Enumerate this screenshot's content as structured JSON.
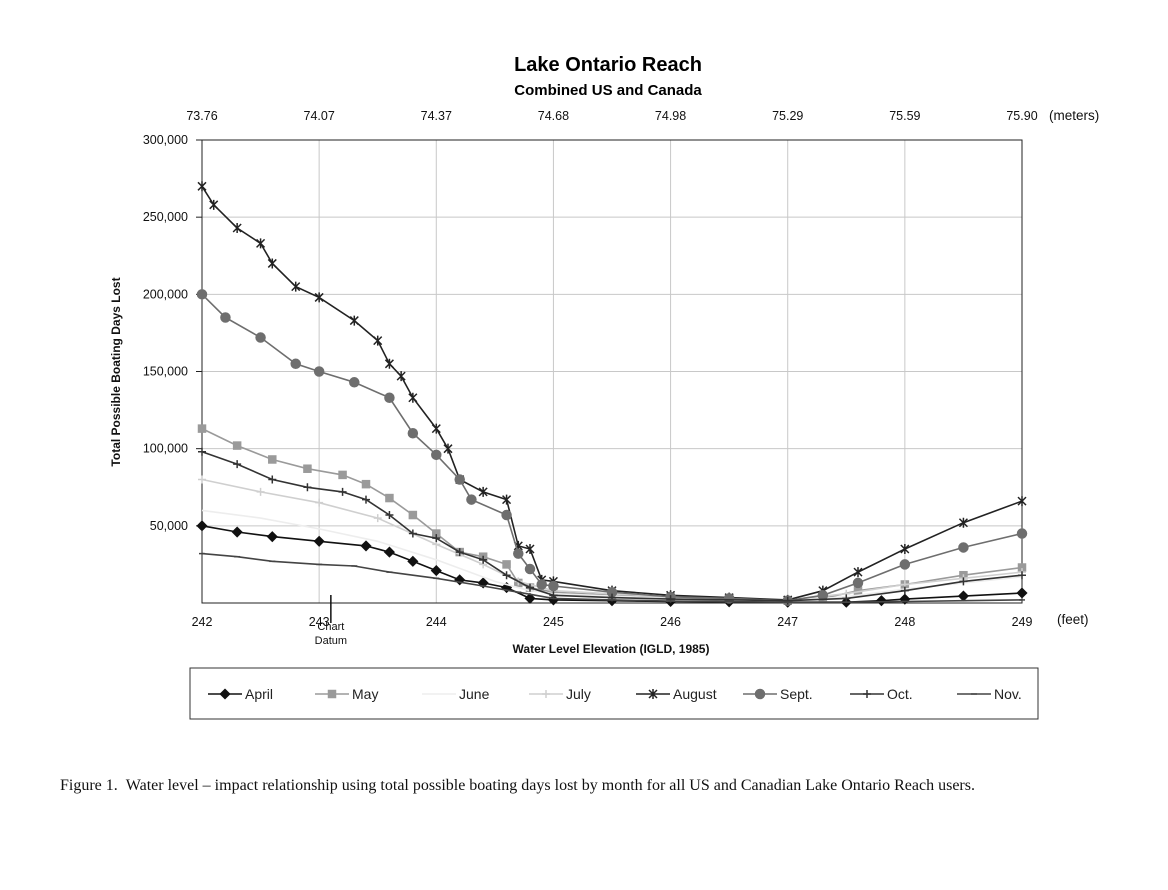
{
  "chart_data": {
    "type": "line",
    "title": "Lake Ontario Reach",
    "subtitle": "Combined US and Canada",
    "xlabel": "Water Level Elevation (IGLD, 1985)",
    "ylabel": "Total Possible Boating Days Lost",
    "x_unit": "(feet)",
    "x2_unit": "(meters)",
    "xlim": [
      242,
      249
    ],
    "ylim": [
      0,
      300000
    ],
    "x_ticks": [
      "242",
      "243",
      "244",
      "245",
      "246",
      "247",
      "248",
      "249"
    ],
    "x2_ticks": [
      "73.76",
      "74.07",
      "74.37",
      "74.68",
      "74.98",
      "75.29",
      "75.59",
      "75.90"
    ],
    "y_ticks": [
      "300,000",
      "250,000",
      "200,000",
      "150,000",
      "100,000",
      "50,000"
    ],
    "y_tick_values": [
      300000,
      250000,
      200000,
      150000,
      100000,
      50000
    ],
    "annotation": {
      "x": 243.1,
      "line1": "Chart",
      "line2": "Datum"
    },
    "grid": true,
    "legend_position": "bottom",
    "series": [
      {
        "name": "April",
        "color": "#111111",
        "marker": "diamond",
        "points": [
          [
            242,
            50000
          ],
          [
            242.3,
            46000
          ],
          [
            242.6,
            43000
          ],
          [
            243.0,
            40000
          ],
          [
            243.4,
            37000
          ],
          [
            243.6,
            33000
          ],
          [
            243.8,
            27000
          ],
          [
            244.0,
            21000
          ],
          [
            244.2,
            15000
          ],
          [
            244.4,
            13000
          ],
          [
            244.6,
            10000
          ],
          [
            244.8,
            3000
          ],
          [
            245.0,
            2000
          ],
          [
            245.5,
            1500
          ],
          [
            246.0,
            1000
          ],
          [
            246.5,
            800
          ],
          [
            247.0,
            500
          ],
          [
            247.5,
            500
          ],
          [
            247.8,
            1500
          ],
          [
            248.0,
            2500
          ],
          [
            248.5,
            4500
          ],
          [
            249,
            6500
          ]
        ]
      },
      {
        "name": "May",
        "color": "#9a9a9a",
        "marker": "square",
        "points": [
          [
            242,
            113000
          ],
          [
            242.3,
            102000
          ],
          [
            242.6,
            93000
          ],
          [
            242.9,
            87000
          ],
          [
            243.2,
            83000
          ],
          [
            243.4,
            77000
          ],
          [
            243.6,
            68000
          ],
          [
            243.8,
            57000
          ],
          [
            244.0,
            45000
          ],
          [
            244.2,
            33000
          ],
          [
            244.4,
            30000
          ],
          [
            244.6,
            25000
          ],
          [
            244.7,
            13000
          ],
          [
            244.8,
            10000
          ],
          [
            245.0,
            7000
          ],
          [
            245.5,
            5000
          ],
          [
            246.0,
            3500
          ],
          [
            246.5,
            3000
          ],
          [
            247.0,
            1500
          ],
          [
            247.3,
            3000
          ],
          [
            247.6,
            8000
          ],
          [
            248.0,
            12000
          ],
          [
            248.5,
            18000
          ],
          [
            249,
            23000
          ]
        ]
      },
      {
        "name": "June",
        "color": "#ededed",
        "marker": "none",
        "points": [
          [
            242,
            60000
          ],
          [
            242.5,
            55000
          ],
          [
            243.0,
            48000
          ],
          [
            243.5,
            40000
          ],
          [
            244.0,
            28000
          ],
          [
            244.5,
            14000
          ],
          [
            244.8,
            8000
          ],
          [
            245.0,
            6000
          ],
          [
            246.0,
            3000
          ],
          [
            247.0,
            1500
          ],
          [
            247.5,
            4000
          ],
          [
            248.0,
            9000
          ],
          [
            248.5,
            13000
          ],
          [
            249,
            17000
          ]
        ]
      },
      {
        "name": "July",
        "color": "#cfcfcf",
        "marker": "plus",
        "points": [
          [
            242,
            80000
          ],
          [
            242.5,
            72000
          ],
          [
            243.0,
            65000
          ],
          [
            243.5,
            55000
          ],
          [
            244.0,
            38000
          ],
          [
            244.4,
            25000
          ],
          [
            244.7,
            14000
          ],
          [
            245.0,
            8000
          ],
          [
            246.0,
            4000
          ],
          [
            247.0,
            2000
          ],
          [
            247.5,
            6000
          ],
          [
            248.0,
            12000
          ],
          [
            248.5,
            16000
          ],
          [
            249,
            20000
          ]
        ]
      },
      {
        "name": "August",
        "color": "#222222",
        "marker": "xstar",
        "points": [
          [
            242,
            270000
          ],
          [
            242.1,
            258000
          ],
          [
            242.3,
            243000
          ],
          [
            242.5,
            233000
          ],
          [
            242.6,
            220000
          ],
          [
            242.8,
            205000
          ],
          [
            243.0,
            198000
          ],
          [
            243.3,
            183000
          ],
          [
            243.5,
            170000
          ],
          [
            243.6,
            155000
          ],
          [
            243.7,
            147000
          ],
          [
            243.8,
            133000
          ],
          [
            244.0,
            113000
          ],
          [
            244.1,
            100000
          ],
          [
            244.2,
            80000
          ],
          [
            244.4,
            72000
          ],
          [
            244.6,
            67000
          ],
          [
            244.7,
            37000
          ],
          [
            244.8,
            35000
          ],
          [
            244.9,
            15000
          ],
          [
            245.0,
            14000
          ],
          [
            245.5,
            8000
          ],
          [
            246.0,
            5000
          ],
          [
            246.5,
            3500
          ],
          [
            247.0,
            2000
          ],
          [
            247.3,
            8000
          ],
          [
            247.6,
            20000
          ],
          [
            248.0,
            35000
          ],
          [
            248.5,
            52000
          ],
          [
            249,
            66000
          ]
        ]
      },
      {
        "name": "Sept.",
        "color": "#6e6e6e",
        "marker": "circle",
        "points": [
          [
            242,
            200000
          ],
          [
            242.2,
            185000
          ],
          [
            242.5,
            172000
          ],
          [
            242.8,
            155000
          ],
          [
            243.0,
            150000
          ],
          [
            243.3,
            143000
          ],
          [
            243.6,
            133000
          ],
          [
            243.8,
            110000
          ],
          [
            244.0,
            96000
          ],
          [
            244.2,
            80000
          ],
          [
            244.3,
            67000
          ],
          [
            244.6,
            57000
          ],
          [
            244.7,
            32000
          ],
          [
            244.8,
            22000
          ],
          [
            244.9,
            12000
          ],
          [
            245.0,
            11000
          ],
          [
            245.5,
            7000
          ],
          [
            246.0,
            4000
          ],
          [
            246.5,
            3000
          ],
          [
            247.0,
            1500
          ],
          [
            247.3,
            5000
          ],
          [
            247.6,
            13000
          ],
          [
            248.0,
            25000
          ],
          [
            248.5,
            36000
          ],
          [
            249,
            45000
          ]
        ]
      },
      {
        "name": "Oct.",
        "color": "#333333",
        "marker": "plus",
        "points": [
          [
            242,
            98000
          ],
          [
            242.3,
            90000
          ],
          [
            242.6,
            80000
          ],
          [
            242.9,
            75000
          ],
          [
            243.2,
            72000
          ],
          [
            243.4,
            67000
          ],
          [
            243.6,
            57000
          ],
          [
            243.8,
            45000
          ],
          [
            244.0,
            42000
          ],
          [
            244.2,
            33000
          ],
          [
            244.4,
            28000
          ],
          [
            244.6,
            18000
          ],
          [
            244.8,
            10000
          ],
          [
            245.0,
            5000
          ],
          [
            245.5,
            3500
          ],
          [
            246.0,
            2500
          ],
          [
            247.0,
            1500
          ],
          [
            247.5,
            3000
          ],
          [
            248.0,
            8000
          ],
          [
            248.5,
            14000
          ],
          [
            249,
            18000
          ]
        ]
      },
      {
        "name": "Nov.",
        "color": "#444444",
        "marker": "tick",
        "points": [
          [
            242,
            32000
          ],
          [
            242.3,
            30000
          ],
          [
            242.6,
            27000
          ],
          [
            243.0,
            25000
          ],
          [
            243.3,
            24000
          ],
          [
            243.6,
            20000
          ],
          [
            244.0,
            16000
          ],
          [
            244.4,
            11000
          ],
          [
            244.7,
            7000
          ],
          [
            245.0,
            3000
          ],
          [
            245.5,
            2000
          ],
          [
            246.0,
            1200
          ],
          [
            247.0,
            500
          ],
          [
            247.5,
            500
          ],
          [
            248.0,
            1000
          ],
          [
            248.5,
            1500
          ],
          [
            249,
            2000
          ]
        ]
      }
    ]
  },
  "caption": {
    "label": "Figure 1.",
    "text": "Water level – impact relationship using total possible boating days lost by month for all US and Canadian Lake Ontario Reach users."
  }
}
